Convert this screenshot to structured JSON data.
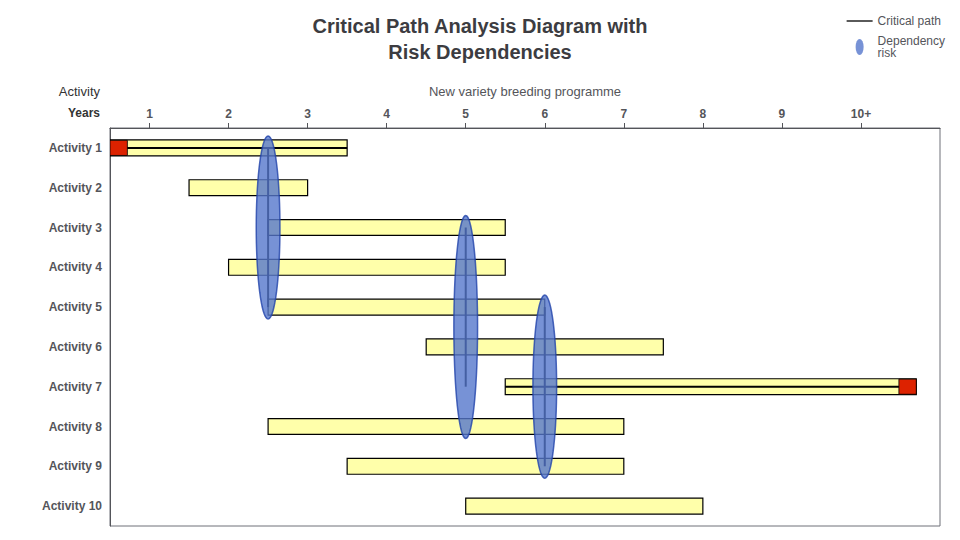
{
  "chart_data": {
    "type": "gantt",
    "title": "Critical Path Analysis Diagram with\nRisk Dependencies",
    "x_label": "New variety breeding programme",
    "y_label": "Activity",
    "annotations": [
      "Years"
    ],
    "categories": [
      "Activity 1",
      "Activity 2",
      "Activity 3",
      "Activity 4",
      "Activity 5",
      "Activity 6",
      "Activity 7",
      "Activity 8",
      "Activity 9",
      "Activity 10"
    ],
    "start": [
      0.0,
      1.0,
      2.0,
      1.5,
      2.0,
      4.0,
      5.0,
      2.0,
      3.0,
      4.5
    ],
    "end": [
      3.0,
      2.5,
      5.0,
      5.0,
      5.5,
      7.0,
      10.2,
      6.5,
      6.5,
      7.5
    ],
    "critical": [
      true,
      false,
      false,
      false,
      false,
      false,
      true,
      false,
      false,
      false
    ],
    "red_start": [
      true,
      false,
      false,
      false,
      false,
      false,
      false,
      false,
      false,
      false
    ],
    "red_end": [
      false,
      false,
      false,
      false,
      false,
      false,
      true,
      false,
      false,
      false
    ],
    "color": "#ffffaa",
    "red_color": "#dd2200",
    "series": [
      {
        "name": "Critical path",
        "type": "line",
        "color": "#000000",
        "spans": [
          {
            "x": 2.0,
            "from": "Activity 1",
            "to": "Activity 5"
          },
          {
            "x": 4.5,
            "from": "Activity 3",
            "to": "Activity 7"
          },
          {
            "x": 5.5,
            "from": "Activity 5",
            "to": "Activity 9"
          }
        ]
      },
      {
        "name": "Dependency\nrisk",
        "type": "ellipse",
        "color": "#5577cc",
        "spans": [
          {
            "x": 2.0,
            "from": "Activity 1",
            "to": "Activity 5"
          },
          {
            "x": 4.5,
            "from": "Activity 3",
            "to": "Activity 8"
          },
          {
            "x": 5.5,
            "from": "Activity 5",
            "to": "Activity 9"
          }
        ]
      }
    ],
    "xlim": [
      0,
      10.5
    ],
    "xticks": [
      {
        "value": 0.5,
        "label": "1"
      },
      {
        "value": 1.5,
        "label": "2"
      },
      {
        "value": 2.5,
        "label": "3"
      },
      {
        "value": 3.5,
        "label": "4"
      },
      {
        "value": 4.5,
        "label": "5"
      },
      {
        "value": 5.5,
        "label": "6"
      },
      {
        "value": 6.5,
        "label": "7"
      },
      {
        "value": 7.5,
        "label": "8"
      },
      {
        "value": 8.5,
        "label": "9"
      },
      {
        "value": 9.5,
        "label": "10+"
      }
    ],
    "grid": false,
    "legend": "top-right"
  }
}
